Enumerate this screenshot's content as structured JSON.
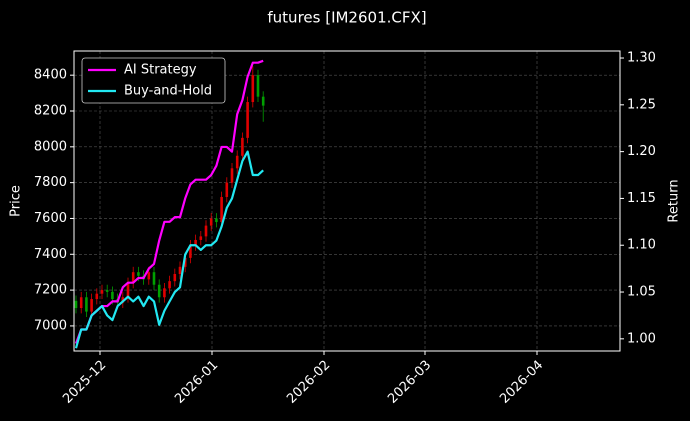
{
  "chart_data": {
    "type": "candlestick",
    "title": "futures [IM2601.CFX]",
    "ylabel": "Price",
    "y2label": "Return",
    "xticks": [
      "2025-12",
      "2026-01",
      "2026-02",
      "2026-03",
      "2026-04"
    ],
    "ylim": [
      6860,
      8535
    ],
    "yticks": [
      7000,
      7200,
      7400,
      7600,
      7800,
      8000,
      8200,
      8400
    ],
    "y2lim": [
      0.987,
      1.3075
    ],
    "y2ticks": [
      {
        "value": 1.0,
        "label": "1.00"
      },
      {
        "value": 1.05,
        "label": "1.05"
      },
      {
        "value": 1.1,
        "label": "1.10"
      },
      {
        "value": 1.15,
        "label": "1.15"
      },
      {
        "value": 1.2,
        "label": "1.20"
      },
      {
        "value": 1.25,
        "label": "1.25"
      },
      {
        "value": 1.3,
        "label": "1.30"
      }
    ],
    "grid": true,
    "legend": "upper left",
    "up_color": "#e00000",
    "down_color": "#00a000",
    "candles": {
      "open": [
        7140,
        7100,
        7160,
        7080,
        7150,
        7180,
        7200,
        7190,
        7150,
        7130,
        7160,
        7240,
        7300,
        7280,
        7260,
        7300,
        7230,
        7160,
        7210,
        7250,
        7290,
        7330,
        7380,
        7450,
        7480,
        7500,
        7560,
        7600,
        7580,
        7720,
        7800,
        7880,
        7950,
        8050,
        8250,
        8400,
        8280
      ],
      "high": [
        7170,
        7190,
        7190,
        7180,
        7210,
        7230,
        7230,
        7220,
        7180,
        7190,
        7270,
        7330,
        7330,
        7310,
        7330,
        7330,
        7260,
        7240,
        7280,
        7320,
        7360,
        7410,
        7480,
        7510,
        7530,
        7590,
        7630,
        7630,
        7750,
        7830,
        7910,
        7980,
        8080,
        8280,
        8450,
        8430,
        8310
      ],
      "low": [
        7070,
        7070,
        7050,
        7050,
        7120,
        7150,
        7160,
        7120,
        7100,
        7100,
        7130,
        7210,
        7250,
        7230,
        7230,
        7200,
        7130,
        7130,
        7180,
        7220,
        7260,
        7300,
        7350,
        7420,
        7450,
        7470,
        7530,
        7550,
        7550,
        7690,
        7770,
        7850,
        7920,
        8020,
        8220,
        8250,
        8140
      ],
      "close": [
        7100,
        7160,
        7080,
        7150,
        7180,
        7200,
        7190,
        7150,
        7130,
        7160,
        7240,
        7300,
        7280,
        7260,
        7300,
        7230,
        7160,
        7210,
        7250,
        7290,
        7330,
        7380,
        7450,
        7480,
        7500,
        7560,
        7600,
        7580,
        7720,
        7800,
        7880,
        7950,
        8050,
        8250,
        8400,
        8280,
        8230
      ]
    },
    "series": [
      {
        "name": "AI Strategy",
        "color": "#ff00ff",
        "axis": "y2",
        "values": [
          0.995,
          1.01,
          1.01,
          1.025,
          1.03,
          1.035,
          1.035,
          1.04,
          1.04,
          1.055,
          1.06,
          1.06,
          1.065,
          1.065,
          1.075,
          1.08,
          1.105,
          1.125,
          1.125,
          1.13,
          1.13,
          1.15,
          1.165,
          1.17,
          1.17,
          1.17,
          1.175,
          1.185,
          1.205,
          1.205,
          1.2,
          1.24,
          1.255,
          1.28,
          1.295,
          1.295,
          1.297
        ]
      },
      {
        "name": "Buy-and-Hold",
        "color": "#22e8f2",
        "axis": "y2",
        "values": [
          0.99,
          1.01,
          1.01,
          1.025,
          1.03,
          1.035,
          1.025,
          1.02,
          1.035,
          1.04,
          1.045,
          1.04,
          1.045,
          1.035,
          1.045,
          1.04,
          1.015,
          1.03,
          1.04,
          1.05,
          1.055,
          1.09,
          1.1,
          1.1,
          1.095,
          1.1,
          1.1,
          1.105,
          1.12,
          1.14,
          1.15,
          1.17,
          1.19,
          1.2,
          1.175,
          1.175,
          1.18
        ]
      }
    ]
  }
}
